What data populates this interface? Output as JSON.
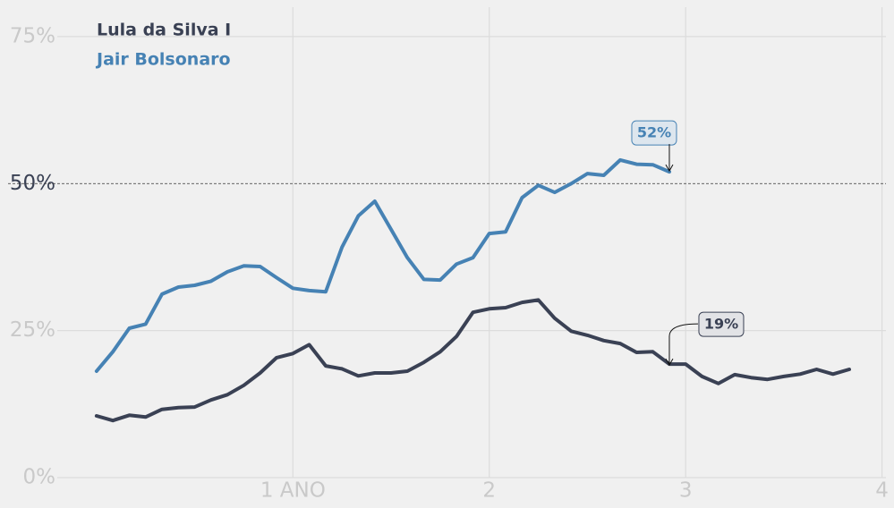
{
  "chart_data": {
    "type": "line",
    "x": [
      0,
      0.083,
      0.167,
      0.25,
      0.333,
      0.417,
      0.5,
      0.583,
      0.667,
      0.75,
      0.833,
      0.917,
      1,
      1.083,
      1.167,
      1.25,
      1.333,
      1.417,
      1.5,
      1.583,
      1.667,
      1.75,
      1.833,
      1.917,
      2,
      2.083,
      2.167,
      2.25,
      2.333,
      2.417,
      2.5,
      2.583,
      2.667,
      2.75,
      2.833,
      2.917,
      3,
      3.083,
      3.167,
      3.25,
      3.333,
      3.417,
      3.5,
      3.583,
      3.667,
      3.75,
      3.833
    ],
    "series": [
      {
        "name": "Lula da Silva I",
        "color": "#3a4154",
        "values": [
          10.5,
          9.7,
          10.6,
          10.3,
          11.6,
          11.9,
          12.0,
          13.2,
          14.1,
          15.7,
          17.8,
          20.4,
          21.1,
          22.6,
          19.0,
          18.5,
          17.3,
          17.8,
          17.8,
          18.1,
          19.6,
          21.4,
          24.0,
          28.1,
          28.7,
          28.9,
          29.8,
          30.2,
          27.1,
          24.9,
          24.2,
          23.3,
          22.8,
          21.3,
          21.4,
          19.3,
          19.3,
          17.2,
          16.0,
          17.5,
          17.0,
          16.7,
          17.2,
          17.6,
          18.4,
          17.6,
          18.4
        ]
      },
      {
        "name": "Jair Bolsonaro",
        "color": "#4682b4",
        "values": [
          18.1,
          21.4,
          25.4,
          26.1,
          31.2,
          32.4,
          32.7,
          33.4,
          35.0,
          36.0,
          35.9,
          34.0,
          32.2,
          31.8,
          31.6,
          39.2,
          44.5,
          47.0,
          42.2,
          37.4,
          33.7,
          33.6,
          36.3,
          37.4,
          41.5,
          41.8,
          47.6,
          49.7,
          48.5,
          50.0,
          51.7,
          51.4,
          54.0,
          53.3,
          53.2,
          52.0,
          null,
          null,
          null,
          null,
          null,
          null,
          null,
          null,
          null,
          null,
          null
        ]
      }
    ],
    "annotations": [
      {
        "text": "52%",
        "x": 2.917,
        "y": 52,
        "series": 1
      },
      {
        "text": "19%",
        "x": 2.917,
        "y": 19,
        "series": 0
      }
    ],
    "hline": 50,
    "xlim": [
      -0.2,
      4.02
    ],
    "ylim": [
      0,
      80
    ],
    "xticks": [
      {
        "value": 1,
        "label": "1 ANO"
      },
      2,
      3,
      4
    ],
    "yticks": [
      {
        "value": 0,
        "label": "0%"
      },
      {
        "value": 25,
        "label": "25%"
      },
      {
        "value": 50,
        "label": "50%"
      },
      {
        "value": 75,
        "label": "75%"
      }
    ],
    "grid": true,
    "legend": "top-left"
  }
}
